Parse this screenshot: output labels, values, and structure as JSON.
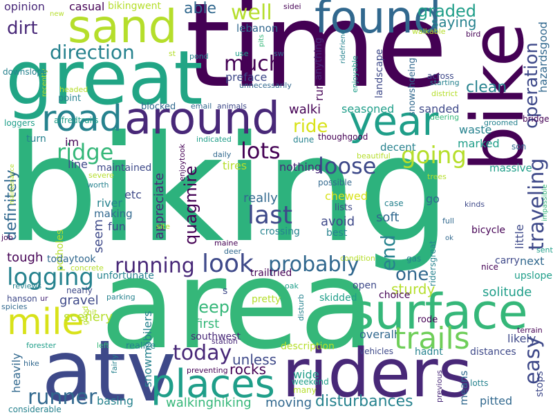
{
  "words": {
    "biking": "biking",
    "area": "area",
    "time": "time",
    "bike": "bike",
    "great": "great",
    "sand": "sand",
    "found": "found",
    "around": "around",
    "road": "road",
    "year": "year",
    "atv": "atv",
    "riders": "riders",
    "surface": "surface",
    "mile": "mile",
    "places": "places",
    "trails": "trails",
    "ridge": "ridge",
    "lots": "lots",
    "loose": "loose",
    "going": "going",
    "look": "look",
    "running": "running",
    "logging": "logging",
    "probably": "probably",
    "last": "last",
    "much": "much",
    "well": "well",
    "direction": "direction",
    "dirt": "dirt",
    "graded": "graded",
    "saying": "saying",
    "clean": "clean",
    "ride": "ride",
    "end": "end",
    "one": "one",
    "today": "today",
    "runner": "runner",
    "easy": "easy",
    "disturbances": "disturbances",
    "walkinghiking": "walkinghiking",
    "deep": "deep",
    "unless": "unless",
    "rocks": "rocks",
    "moving": "moving",
    "basing": "basing",
    "pitted": "pitted",
    "traveling": "traveling",
    "operation": "operation",
    "quagmire": "quagmire",
    "definitely": "definitely",
    "appreciate": "appreciate",
    "snowmobilers": "snowmobilers",
    "casual": "casual",
    "opinion": "opinion",
    "bikingwent": "bikingwent",
    "able": "able",
    "lebanon": "lebanon",
    "preface": "preface",
    "seasoned": "seasoned",
    "sanded": "sanded",
    "waste": "waste",
    "marked": "marked",
    "decent": "decent",
    "massive": "massive",
    "tires": "tires",
    "nothing": "nothing",
    "line": "line",
    "maintained": "maintained",
    "river": "river",
    "etc": "etc",
    "making": "making",
    "fun": "fun",
    "seem": "seem",
    "really": "really",
    "avoid": "avoid",
    "soft": "soft",
    "chewed": "chewed",
    "lists": "lists",
    "crossing": "crossing",
    "best": "best",
    "little": "little",
    "tough": "tough",
    "todaytook": "todaytook",
    "unfortunate": "unfortunate",
    "gravel": "gravel",
    "scenery": "scenery",
    "first": "first",
    "southwest": "southwest",
    "overall": "overall",
    "sturdy": "sturdy",
    "solitude": "solitude",
    "likely": "likely",
    "next": "next",
    "carry": "carry",
    "upslope": "upslope",
    "open": "open",
    "choice": "choice",
    "skidded": "skidded",
    "pretty": "pretty",
    "description": "description",
    "wide": "wide",
    "many": "many",
    "weekend": "weekend",
    "hadnt": "hadnt",
    "distances": "distances",
    "means": "means",
    "stops": "stops",
    "heavily": "heavily",
    "considerable": "considerable",
    "hike": "hike",
    "forester": "forester",
    "realize": "realize",
    "station": "station",
    "vehicles": "vehicles",
    "preventing": "preventing",
    "lotts": "lotts",
    "previous": "previous",
    "terrain": "terrain",
    "runnersgot": "runnersgot",
    "anything": "anything",
    "landscape": "landscape",
    "snowshoeing": "snowshoeing",
    "enjoyable": "enjoyable",
    "ridefriend": "ridefriend",
    "hazardsgood": "hazardsgood",
    "across": "across",
    "starting": "starting",
    "walkable": "walkable",
    "bird": "bird",
    "dune": "dune",
    "thoughgood": "thoughgood",
    "beautiful": "beautiful",
    "trees": "trees",
    "possible": "possible",
    "case": "case",
    "go": "go",
    "kinds": "kinds",
    "bicycle": "bicycle",
    "impassible": "impassible",
    "full": "full",
    "ok": "ok",
    "ridersgreat": "ridersgreat",
    "nice": "nice",
    "sent": "sent",
    "gas": "gas",
    "condition": "condition",
    "trailtried": "trailtried",
    "maine": "maine",
    "deer": "deer",
    "oak": "oak",
    "disturb": "disturb",
    "rode": "rode",
    "s": "s",
    "hanson": "hanson",
    "ur": "ur",
    "parking": "parking",
    "spicies": "spicies",
    "hit": "hit",
    "good": "good",
    "left": "left",
    "fairly": "fairly",
    "nearly": "nearly",
    "reviews": "reviews",
    "job": "job",
    "concrete": "concrete",
    "potholes": "potholes",
    "maintenance": "maintenance",
    "worth": "worth",
    "severe": "severe",
    "site": "site",
    "im": "im",
    "turn": "turn",
    "loggers": "loggers",
    "alfredtrails": "alfredtrails",
    "blocked": "blocked",
    "email": "email",
    "animals": "animals",
    "indicated": "indicated",
    "daily": "daily",
    "enjoytook": "enjoytook",
    "headed": "headed",
    "point": "point",
    "recently": "recently",
    "downslope": "downslope",
    "new": "new",
    "st": "st",
    "pond": "pond",
    "ll": "ll",
    "use": "use",
    "pits": "pits",
    "sw": "sw",
    "unnecessarily": "unnecessarily",
    "district": "district",
    "deering": "deering",
    "groomed": "groomed",
    "bridge": "bridge",
    "son": "son",
    "walki": "walki",
    "sidei": "sidei"
  },
  "colors": {
    "dark_purple": "#440154",
    "purple": "#482878",
    "indigo": "#3e4989",
    "blue": "#31688e",
    "teal_blue": "#26828e",
    "teal": "#1f9e89",
    "green_teal": "#35b779",
    "green": "#6ece58",
    "lime": "#b5de2b",
    "yellow": "#fde725"
  }
}
